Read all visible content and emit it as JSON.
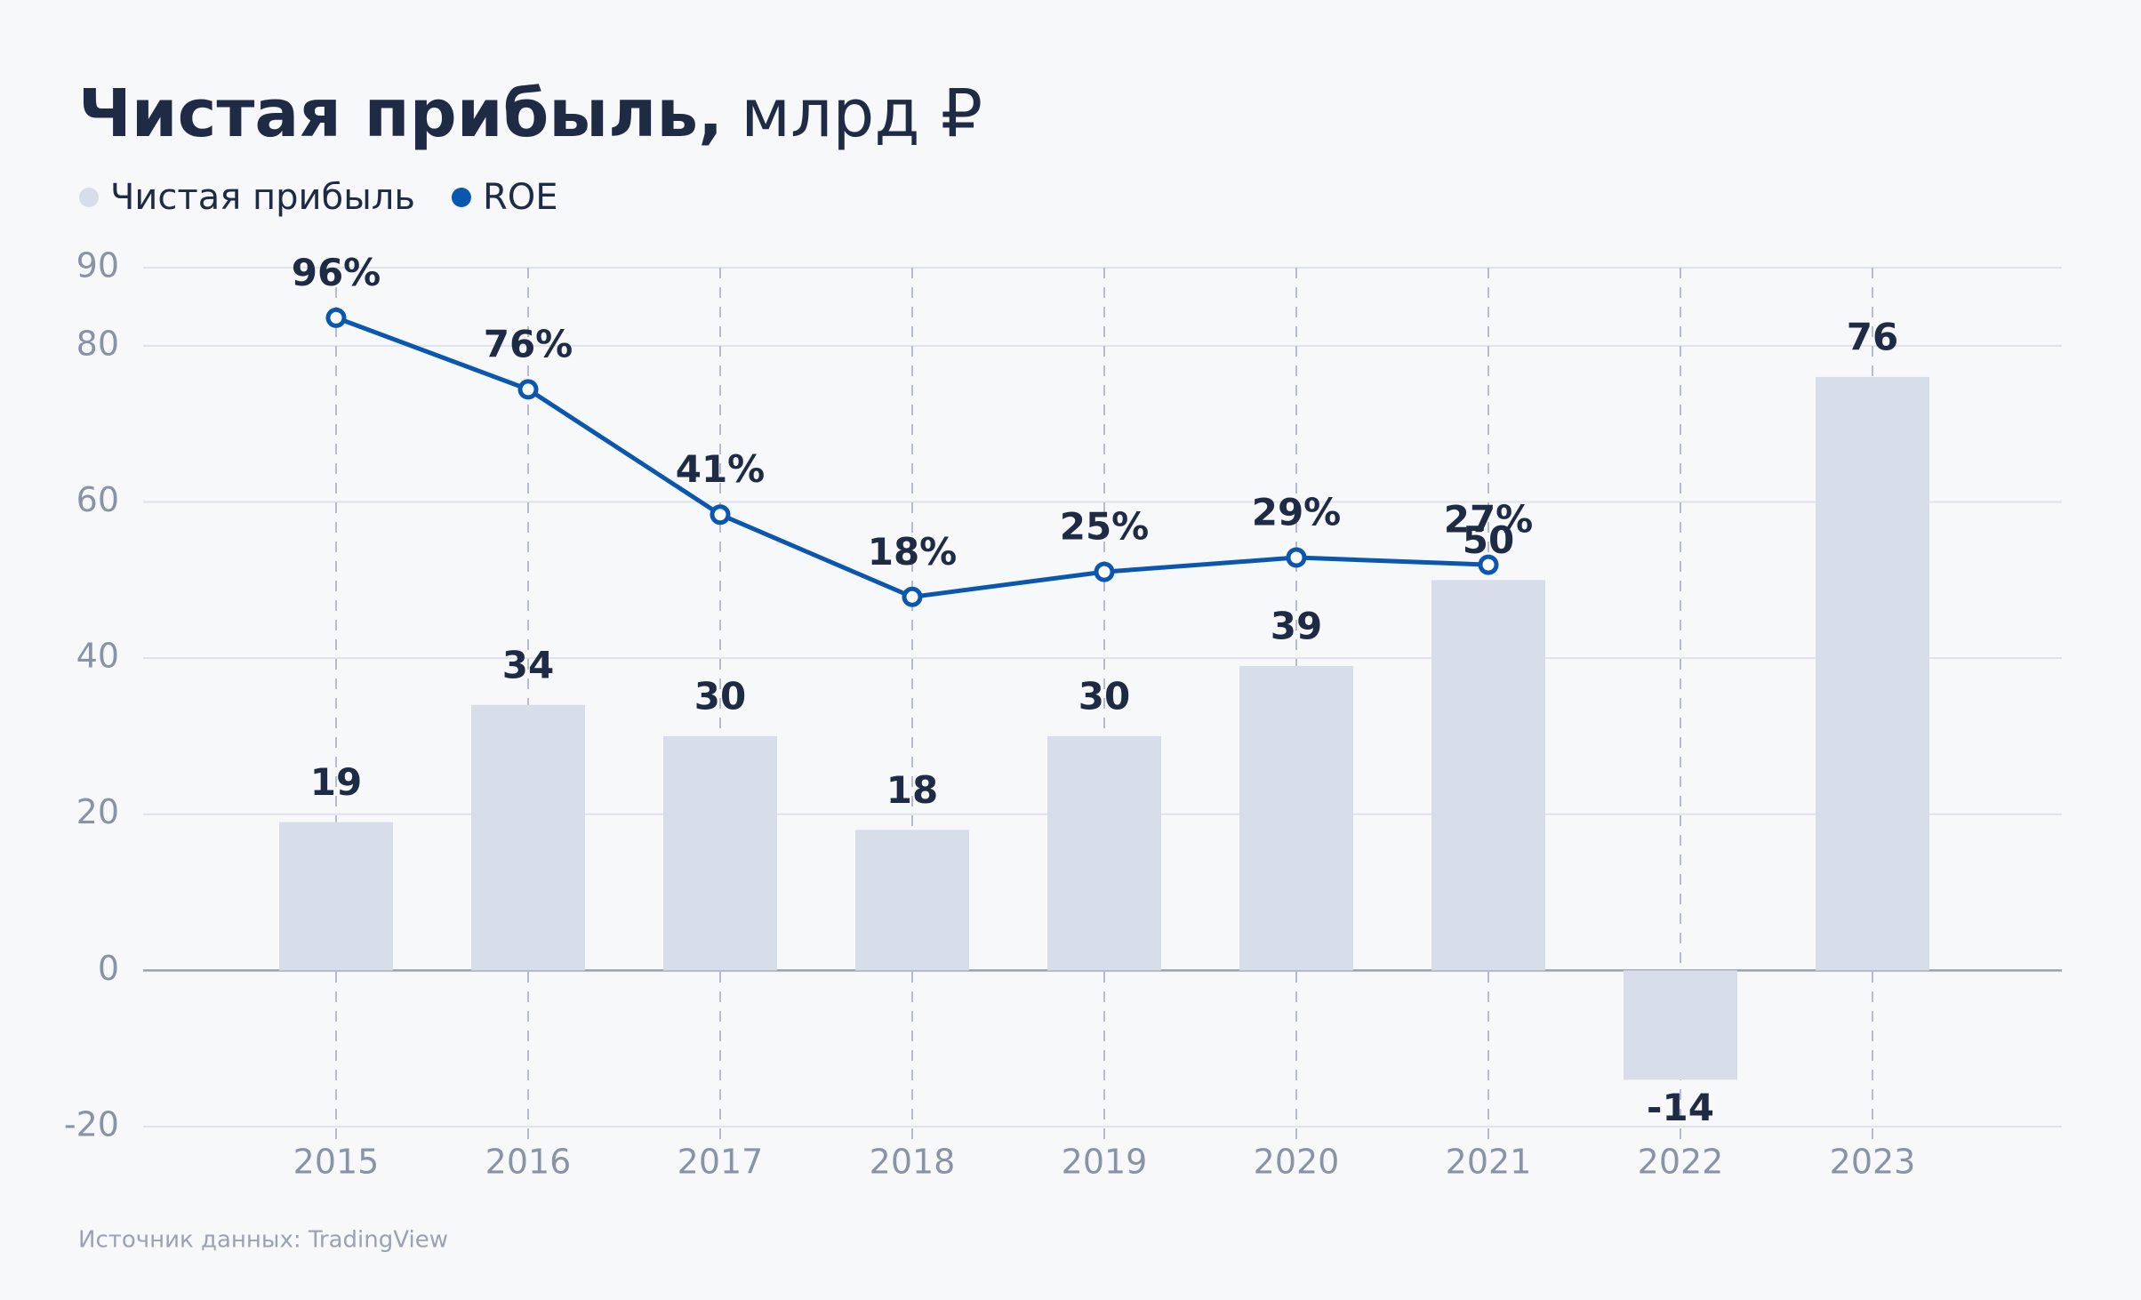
{
  "chart_data": {
    "type": "bar",
    "title": "Чистая прибыль,",
    "title_unit": "млрд ₽",
    "categories": [
      "2015",
      "2016",
      "2017",
      "2018",
      "2019",
      "2020",
      "2021",
      "2022",
      "2023"
    ],
    "series": [
      {
        "name": "Чистая прибыль",
        "type": "bar",
        "color": "#d8dee9",
        "values": [
          19,
          34,
          30,
          18,
          30,
          39,
          50,
          -14,
          76
        ]
      },
      {
        "name": "ROE",
        "type": "line",
        "axis": "y2",
        "color": "#0b57b0",
        "values": [
          96,
          76,
          41,
          18,
          25,
          29,
          27,
          null,
          null
        ],
        "value_labels": [
          "96%",
          "76%",
          "41%",
          "18%",
          "25%",
          "29%",
          "27%",
          null,
          null
        ]
      }
    ],
    "ylim": [
      -20,
      90
    ],
    "yticks": [
      -20,
      0,
      20,
      40,
      60,
      80,
      90
    ],
    "y2lim": [
      -130,
      110
    ],
    "grid": true,
    "legend": "top-left",
    "source": "Источник данных: TradingView"
  }
}
